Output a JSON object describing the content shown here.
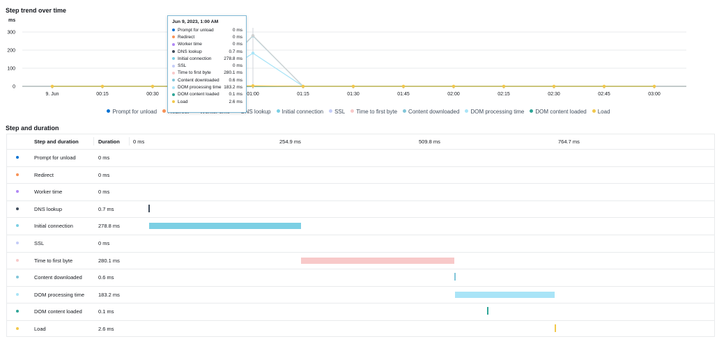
{
  "trend": {
    "title": "Step trend over time",
    "y_unit": "ms"
  },
  "chart_data": {
    "type": "line",
    "title": "Step trend over time",
    "ylabel": "ms",
    "ylim": [
      0,
      300
    ],
    "yticks": [
      "0",
      "100",
      "200",
      "300"
    ],
    "categories": [
      "9. Jun",
      "00:15",
      "00:30",
      "00:45",
      "01:00",
      "01:15",
      "01:30",
      "01:45",
      "02:00",
      "02:15",
      "02:30",
      "02:45",
      "03:00"
    ],
    "series": [
      {
        "name": "Prompt for unload",
        "color": "#0972d3",
        "values": [
          0,
          0,
          0,
          0,
          0,
          0,
          0,
          0,
          0,
          0,
          0,
          0,
          0
        ]
      },
      {
        "name": "Redirect",
        "color": "#f89256",
        "values": [
          0,
          0,
          0,
          0,
          0,
          0,
          0,
          0,
          0,
          0,
          0,
          0,
          0
        ]
      },
      {
        "name": "Worker time",
        "color": "#b088f5",
        "values": [
          0,
          0,
          0,
          0,
          0,
          0,
          0,
          0,
          0,
          0,
          0,
          0,
          0
        ]
      },
      {
        "name": "DNS lookup",
        "color": "#414d5c",
        "values": [
          0,
          0,
          0,
          0,
          0.7,
          0,
          0,
          0,
          0,
          0,
          0,
          0,
          0
        ]
      },
      {
        "name": "Initial connection",
        "color": "#7bcfe4",
        "values": [
          0,
          0,
          0,
          0,
          278.8,
          0,
          0,
          0,
          0,
          0,
          0,
          0,
          0
        ]
      },
      {
        "name": "SSL",
        "color": "#c4cdf8",
        "values": [
          0,
          0,
          0,
          0,
          0,
          0,
          0,
          0,
          0,
          0,
          0,
          0,
          0
        ]
      },
      {
        "name": "Time to first byte",
        "color": "#f8c9c9",
        "values": [
          0,
          0,
          0,
          0,
          280.1,
          0,
          0,
          0,
          0,
          0,
          0,
          0,
          0
        ]
      },
      {
        "name": "Content downloaded",
        "color": "#82c6d9",
        "values": [
          0,
          0,
          0,
          0,
          0.6,
          0,
          0,
          0,
          0,
          0,
          0,
          0,
          0
        ]
      },
      {
        "name": "DOM processing time",
        "color": "#a9e4f7",
        "values": [
          0,
          0,
          0,
          0,
          183.2,
          0,
          0,
          0,
          0,
          0,
          0,
          0,
          0
        ]
      },
      {
        "name": "DOM content loaded",
        "color": "#2ea597",
        "values": [
          0,
          0,
          0,
          0,
          0.1,
          0,
          0,
          0,
          0,
          0,
          0,
          0,
          0
        ]
      },
      {
        "name": "Load",
        "color": "#f2c84b",
        "values": [
          0,
          0,
          0,
          0,
          2.6,
          0,
          0,
          0,
          0,
          0,
          0,
          0,
          0
        ]
      }
    ],
    "grid": true,
    "legend_position": "bottom"
  },
  "tooltip": {
    "date": "Jun 9, 2023, 1:00 AM",
    "rows": [
      {
        "label": "Prompt for unload",
        "value": "0 ms",
        "color": "#0972d3"
      },
      {
        "label": "Redirect",
        "value": "0 ms",
        "color": "#f89256"
      },
      {
        "label": "Worker time",
        "value": "0 ms",
        "color": "#b088f5"
      },
      {
        "label": "DNS lookup",
        "value": "0.7 ms",
        "color": "#414d5c"
      },
      {
        "label": "Initial connection",
        "value": "278.8 ms",
        "color": "#7bcfe4"
      },
      {
        "label": "SSL",
        "value": "0 ms",
        "color": "#c4cdf8"
      },
      {
        "label": "Time to first byte",
        "value": "280.1 ms",
        "color": "#f8c9c9"
      },
      {
        "label": "Content downloaded",
        "value": "0.6 ms",
        "color": "#82c6d9"
      },
      {
        "label": "DOM processing time",
        "value": "183.2 ms",
        "color": "#a9e4f7"
      },
      {
        "label": "DOM content loaded",
        "value": "0.1 ms",
        "color": "#2ea597"
      },
      {
        "label": "Load",
        "value": "2.6 ms",
        "color": "#f2c84b"
      }
    ]
  },
  "legend": [
    {
      "label": "Prompt for unload",
      "color": "#0972d3"
    },
    {
      "label": "Redirect",
      "color": "#f89256"
    },
    {
      "label": "Worker time",
      "color": "#b088f5"
    },
    {
      "label": "DNS lookup",
      "color": "#414d5c"
    },
    {
      "label": "Initial connection",
      "color": "#7bcfe4"
    },
    {
      "label": "SSL",
      "color": "#c4cdf8"
    },
    {
      "label": "Time to first byte",
      "color": "#f8c9c9"
    },
    {
      "label": "Content downloaded",
      "color": "#82c6d9"
    },
    {
      "label": "DOM processing time",
      "color": "#a9e4f7"
    },
    {
      "label": "DOM content loaded",
      "color": "#2ea597"
    },
    {
      "label": "Load",
      "color": "#f2c84b"
    }
  ],
  "duration": {
    "title": "Step and duration",
    "col_step": "Step and duration",
    "col_duration": "Duration",
    "scale": [
      "0 ms",
      "254.9 ms",
      "509.8 ms",
      "764.7 ms"
    ],
    "scale_max_ms": 1019.6,
    "rows": [
      {
        "name": "Prompt for unload",
        "duration": "0 ms",
        "start_ms": 0,
        "dur_ms": 0,
        "color": "#0972d3"
      },
      {
        "name": "Redirect",
        "duration": "0 ms",
        "start_ms": 0,
        "dur_ms": 0,
        "color": "#f89256"
      },
      {
        "name": "Worker time",
        "duration": "0 ms",
        "start_ms": 0,
        "dur_ms": 0,
        "color": "#b088f5"
      },
      {
        "name": "DNS lookup",
        "duration": "0.7 ms",
        "start_ms": 0,
        "dur_ms": 0.7,
        "color": "#414d5c"
      },
      {
        "name": "Initial connection",
        "duration": "278.8 ms",
        "start_ms": 0.7,
        "dur_ms": 278.8,
        "color": "#7bcfe4"
      },
      {
        "name": "SSL",
        "duration": "0 ms",
        "start_ms": 279.5,
        "dur_ms": 0,
        "color": "#c4cdf8"
      },
      {
        "name": "Time to first byte",
        "duration": "280.1 ms",
        "start_ms": 279.5,
        "dur_ms": 280.1,
        "color": "#f8c9c9"
      },
      {
        "name": "Content downloaded",
        "duration": "0.6 ms",
        "start_ms": 559.6,
        "dur_ms": 0.6,
        "color": "#82c6d9"
      },
      {
        "name": "DOM processing time",
        "duration": "183.2 ms",
        "start_ms": 560.2,
        "dur_ms": 183.2,
        "color": "#a9e4f7"
      },
      {
        "name": "DOM content loaded",
        "duration": "0.1 ms",
        "start_ms": 620,
        "dur_ms": 0.1,
        "color": "#2ea597"
      },
      {
        "name": "Load",
        "duration": "2.6 ms",
        "start_ms": 743.4,
        "dur_ms": 2.6,
        "color": "#f2c84b"
      }
    ]
  }
}
